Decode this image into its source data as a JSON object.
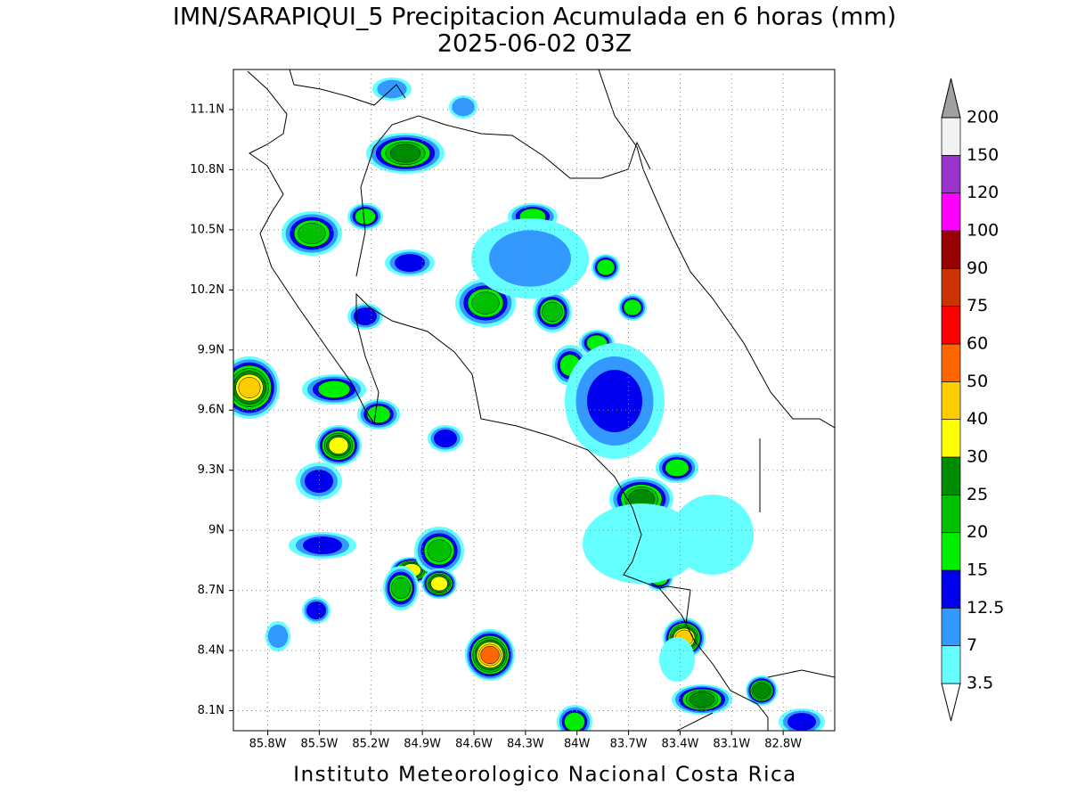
{
  "chart_data": {
    "type": "map",
    "title": "IMN/SARAPIQUI_5 Precipitacion Acumulada en 6 horas (mm)",
    "subtitle": "2025-06-02 03Z",
    "footer": "Instituto Meteorologico Nacional Costa Rica",
    "xlim": [
      -86.0,
      -82.5
    ],
    "ylim": [
      8.0,
      11.3
    ],
    "xticks": [
      {
        "value": -85.8,
        "label": "85.8W"
      },
      {
        "value": -85.5,
        "label": "85.5W"
      },
      {
        "value": -85.2,
        "label": "85.2W"
      },
      {
        "value": -84.9,
        "label": "84.9W"
      },
      {
        "value": -84.6,
        "label": "84.6W"
      },
      {
        "value": -84.3,
        "label": "84.3W"
      },
      {
        "value": -84.0,
        "label": "84W"
      },
      {
        "value": -83.7,
        "label": "83.7W"
      },
      {
        "value": -83.4,
        "label": "83.4W"
      },
      {
        "value": -83.1,
        "label": "83.1W"
      },
      {
        "value": -82.8,
        "label": "82.8W"
      }
    ],
    "yticks": [
      {
        "value": 8.1,
        "label": "8.1N"
      },
      {
        "value": 8.4,
        "label": "8.4N"
      },
      {
        "value": 8.7,
        "label": "8.7N"
      },
      {
        "value": 9.0,
        "label": "9N"
      },
      {
        "value": 9.3,
        "label": "9.3N"
      },
      {
        "value": 9.6,
        "label": "9.6N"
      },
      {
        "value": 9.9,
        "label": "9.9N"
      },
      {
        "value": 10.2,
        "label": "10.2N"
      },
      {
        "value": 10.5,
        "label": "10.5N"
      },
      {
        "value": 10.8,
        "label": "10.8N"
      },
      {
        "value": 11.1,
        "label": "11.1N"
      }
    ],
    "grid": true,
    "legend": {
      "levels": [
        3.5,
        7,
        12.5,
        15,
        20,
        25,
        30,
        40,
        50,
        60,
        75,
        90,
        100,
        120,
        150,
        200
      ],
      "colors": [
        "#ffffff",
        "#66ffff",
        "#3399ff",
        "#0000ee",
        "#00ee00",
        "#00c000",
        "#008c00",
        "#ffff00",
        "#ffcc00",
        "#ff6600",
        "#ff0000",
        "#cc3300",
        "#990000",
        "#ff00ff",
        "#9933cc",
        "#f2f2f2",
        "#a0a0a0"
      ]
    }
  }
}
